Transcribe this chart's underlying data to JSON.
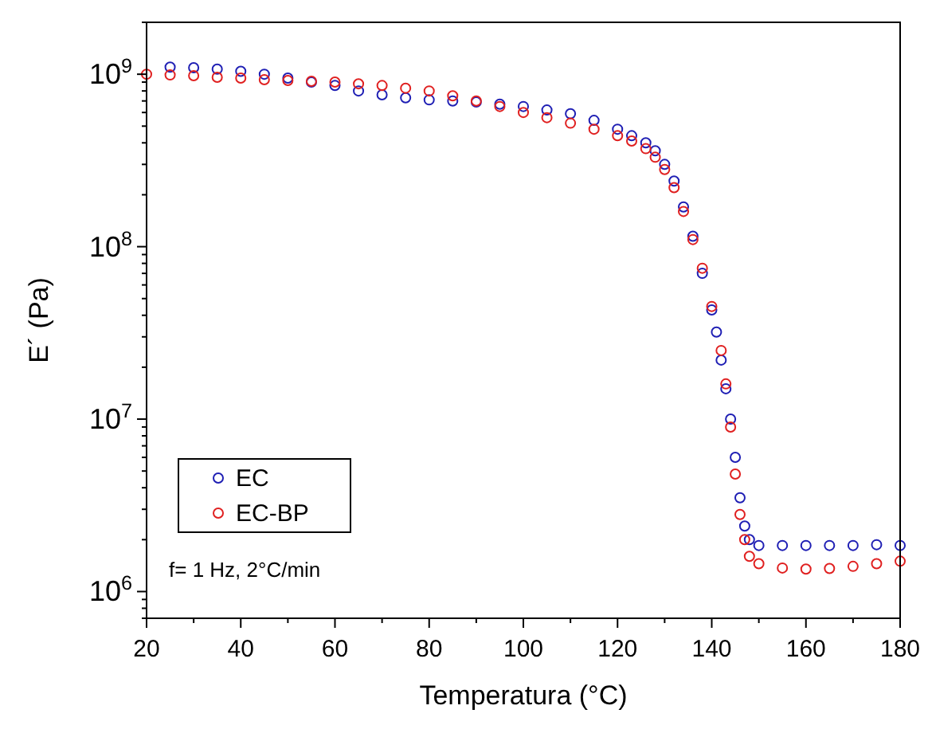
{
  "chart_data": {
    "type": "scatter",
    "xlabel": "Temperatura (°C)",
    "ylabel": "E´ (Pa)",
    "log": "y",
    "marker": "circle",
    "legend": "bottom left",
    "grid": false,
    "xlim": [
      20,
      180
    ],
    "xticks": [
      20,
      {
        "value": 30,
        "label": null
      },
      40,
      {
        "value": 50,
        "label": null
      },
      60,
      {
        "value": 70,
        "label": null
      },
      80,
      {
        "value": 90,
        "label": null
      },
      100,
      {
        "value": 110,
        "label": null
      },
      120,
      {
        "value": 130,
        "label": null
      },
      140,
      {
        "value": 150,
        "label": null
      },
      160,
      {
        "value": 170,
        "label": null
      },
      180
    ],
    "ylim": [
      700000,
      2000000000
    ],
    "yticks": [
      {
        "value": 700000,
        "label": null
      },
      {
        "value": 800000,
        "label": null
      },
      {
        "value": 900000,
        "label": null
      },
      {
        "value": 1000000,
        "label": "10$^{6}$"
      },
      {
        "value": 2000000,
        "label": null
      },
      {
        "value": 3000000,
        "label": null
      },
      {
        "value": 4000000,
        "label": null
      },
      {
        "value": 5000000,
        "label": null
      },
      {
        "value": 6000000,
        "label": null
      },
      {
        "value": 7000000,
        "label": null
      },
      {
        "value": 8000000,
        "label": null
      },
      {
        "value": 9000000,
        "label": null
      },
      {
        "value": 10000000,
        "label": "10$^{7}$"
      },
      {
        "value": 20000000,
        "label": null
      },
      {
        "value": 30000000,
        "label": null
      },
      {
        "value": 40000000,
        "label": null
      },
      {
        "value": 50000000,
        "label": null
      },
      {
        "value": 60000000,
        "label": null
      },
      {
        "value": 70000000,
        "label": null
      },
      {
        "value": 80000000,
        "label": null
      },
      {
        "value": 90000000,
        "label": null
      },
      {
        "value": 100000000,
        "label": "10$^{8}$"
      },
      {
        "value": 200000000,
        "label": null
      },
      {
        "value": 300000000,
        "label": null
      },
      {
        "value": 400000000,
        "label": null
      },
      {
        "value": 500000000,
        "label": null
      },
      {
        "value": 600000000,
        "label": null
      },
      {
        "value": 700000000,
        "label": null
      },
      {
        "value": 800000000,
        "label": null
      },
      {
        "value": 900000000,
        "label": null
      },
      {
        "value": 1000000000,
        "label": "10$^{9}$"
      },
      {
        "value": 2000000000,
        "label": null
      }
    ],
    "annotations": [
      "f= 1 Hz, 2°C/min"
    ],
    "series": [
      {
        "name": "EC",
        "color": "#1f1fb4",
        "x": [
          25,
          30,
          35,
          40,
          45,
          50,
          55,
          60,
          65,
          70,
          75,
          80,
          85,
          90,
          95,
          100,
          105,
          110,
          115,
          120,
          123,
          126,
          128,
          130,
          132,
          134,
          136,
          138,
          140,
          141,
          142,
          143,
          144,
          145,
          146,
          147,
          148,
          150,
          155,
          160,
          165,
          170,
          175,
          180
        ],
        "values": [
          1100000000,
          1090000000,
          1070000000,
          1040000000,
          1000000000,
          950000000,
          900000000,
          860000000,
          800000000,
          760000000,
          730000000,
          710000000,
          700000000,
          690000000,
          670000000,
          650000000,
          620000000,
          590000000,
          540000000,
          480000000,
          440000000,
          400000000,
          360000000,
          300000000,
          240000000,
          170000000,
          115000000,
          70000000,
          43000000,
          32000000,
          22000000,
          15000000,
          10000000,
          6000000,
          3500000,
          2400000,
          2000000,
          1850000,
          1850000,
          1850000,
          1850000,
          1850000,
          1870000,
          1850000
        ]
      },
      {
        "name": "EC-BP",
        "color": "#e02020",
        "x": [
          20,
          25,
          30,
          35,
          40,
          45,
          50,
          55,
          60,
          65,
          70,
          75,
          80,
          85,
          90,
          95,
          100,
          105,
          110,
          115,
          120,
          123,
          126,
          128,
          130,
          132,
          134,
          136,
          138,
          140,
          142,
          143,
          144,
          145,
          146,
          147,
          148,
          150,
          155,
          160,
          165,
          170,
          175,
          180
        ],
        "values": [
          1000000000,
          990000000,
          980000000,
          960000000,
          950000000,
          930000000,
          920000000,
          910000000,
          900000000,
          880000000,
          860000000,
          830000000,
          800000000,
          750000000,
          700000000,
          650000000,
          600000000,
          560000000,
          520000000,
          480000000,
          440000000,
          410000000,
          370000000,
          330000000,
          280000000,
          220000000,
          160000000,
          110000000,
          75000000,
          45000000,
          25000000,
          16000000,
          9000000,
          4800000,
          2800000,
          2000000,
          1600000,
          1450000,
          1370000,
          1350000,
          1360000,
          1400000,
          1450000,
          1500000
        ]
      }
    ]
  }
}
